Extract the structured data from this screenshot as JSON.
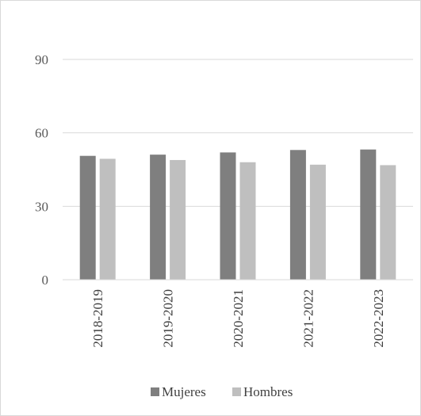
{
  "chart_data": {
    "type": "bar",
    "categories": [
      "2018-2019",
      "2019-2020",
      "2020-2021",
      "2021-2022",
      "2022-2023"
    ],
    "series": [
      {
        "name": "Mujeres",
        "values": [
          50.6,
          51.1,
          52.0,
          53.0,
          53.2
        ],
        "color": "#7f7f7f"
      },
      {
        "name": "Hombres",
        "values": [
          49.4,
          48.9,
          48.0,
          47.0,
          46.8
        ],
        "color": "#bfbfbf"
      }
    ],
    "ylim": [
      0,
      90
    ],
    "yticks": [
      0,
      30,
      60,
      90
    ],
    "grid": true,
    "legend_position": "bottom",
    "title": "",
    "xlabel": "",
    "ylabel": ""
  }
}
